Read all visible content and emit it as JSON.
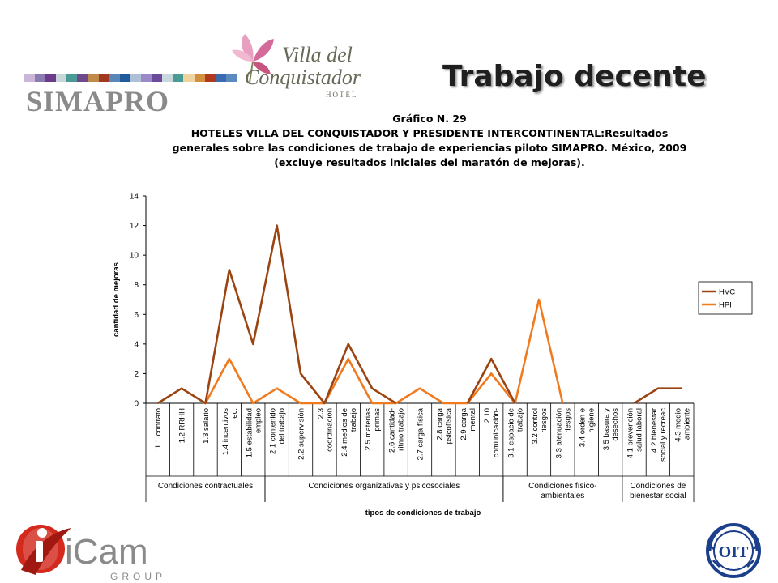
{
  "header": {
    "simapro": "SIMAPRO",
    "hotel_logo": {
      "line1": "Villa del",
      "line2": "Conquistador",
      "line3": "HOTEL"
    },
    "slide_title": "Trabajo decente",
    "strip_colors": [
      "#c9b6d8",
      "#8c7bb3",
      "#6d3b8c",
      "#c7d6d6",
      "#4a9a96",
      "#6f4a8a",
      "#c28a4a",
      "#a0391e",
      "#5a86b8",
      "#1f5c9e",
      "#b0bfd8",
      "#9a8ac8",
      "#6b4a9c",
      "#c9d8dc",
      "#4a9a96",
      "#f0d4a0",
      "#d49040",
      "#b03a1e",
      "#3a6ab0",
      "#5a8ac0"
    ]
  },
  "chart_data": {
    "type": "line",
    "title_lines": [
      "Gráfico N. 29",
      "HOTELES VILLA DEL CONQUISTADOR Y PRESIDENTE INTERCONTINENTAL:Resultados",
      "generales sobre las condiciones de trabajo de experiencias piloto SIMAPRO.  México, 2009",
      "(excluye resultados iniciales del maratón de mejoras)."
    ],
    "ylabel": "cantidad de mejoras",
    "xlabel": "tipos de condiciones de trabajo",
    "ylim": [
      0,
      14
    ],
    "yticks": [
      "0",
      "2",
      "4",
      "6",
      "8",
      "10",
      "12",
      "14"
    ],
    "categories": [
      [
        "1.1 contrato"
      ],
      [
        "1.2 RRHH"
      ],
      [
        "1.3 salario"
      ],
      [
        "1.4 incentivos",
        "ec."
      ],
      [
        "1.5 estabilidad",
        "empleo"
      ],
      [
        "2.1 contenido",
        "del trabajo"
      ],
      [
        "2.2 supervisión"
      ],
      [
        "2.3",
        "coordinación"
      ],
      [
        "2.4 medios de",
        "trabajo"
      ],
      [
        "2.5 materias",
        "primas"
      ],
      [
        "2.6 cantidad-",
        "ritmo trabajo"
      ],
      [
        "2.7 carga física"
      ],
      [
        "2.8 carga",
        "psicofísica"
      ],
      [
        "2.9 carga",
        "mental"
      ],
      [
        "2.10",
        "comunicación-"
      ],
      [
        "3.1 espacio de",
        "trabajo"
      ],
      [
        "3.2 control",
        "riesgos"
      ],
      [
        "3.3 atenuación",
        "riesgos"
      ],
      [
        "3.4 orden e",
        "higiene"
      ],
      [
        "3.5 basura y",
        "desechos"
      ],
      [
        "4.1 prevención",
        "salud laboral"
      ],
      [
        "4.2 bienestar",
        "social y recreac"
      ],
      [
        "4.3 medio",
        "ambiente"
      ]
    ],
    "groups": [
      {
        "lines": [
          "Condiciones contractuales"
        ],
        "start": 0,
        "end": 4
      },
      {
        "lines": [
          "Condiciones organizativas y psicosociales"
        ],
        "start": 5,
        "end": 14
      },
      {
        "lines": [
          "Condiciones físico-",
          "ambientales"
        ],
        "start": 15,
        "end": 19
      },
      {
        "lines": [
          "Condiciones de",
          "bienestar social"
        ],
        "start": 20,
        "end": 22
      }
    ],
    "series": [
      {
        "name": "HVC",
        "color": "#9b4412",
        "values": [
          0,
          1,
          0,
          9,
          4,
          12,
          2,
          0,
          4,
          1,
          0,
          null,
          null,
          0,
          3,
          0,
          null,
          null,
          null,
          null,
          0,
          1,
          1
        ]
      },
      {
        "name": "HPI",
        "color": "#f07a1e",
        "values": [
          null,
          null,
          0,
          3,
          0,
          1,
          0,
          0,
          3,
          0,
          0,
          1,
          0,
          0,
          2,
          0,
          7,
          0,
          null,
          null,
          null,
          null,
          null
        ]
      }
    ],
    "legend_position": "right",
    "grid": false
  },
  "footer": {
    "icam_main": "iCam",
    "icam_sub": "GROUP",
    "oit": "OIT"
  }
}
